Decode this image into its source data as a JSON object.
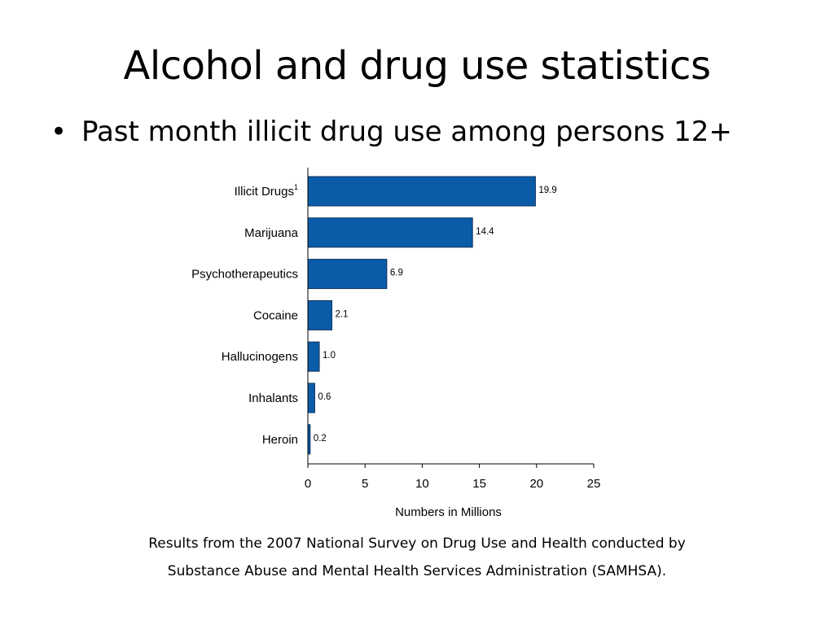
{
  "slide": {
    "title": "Alcohol and drug use statistics",
    "bullet_glyph": "•",
    "bullet": "Past month illicit drug use among persons 12+",
    "caption_line1": "Results from the 2007 National Survey on Drug Use and Health conducted by",
    "caption_line2": "Substance Abuse and Mental Health Services Administration (SAMHSA)."
  },
  "chart_data": {
    "type": "bar",
    "orientation": "horizontal",
    "categories": [
      "Illicit Drugs",
      "Marijuana",
      "Psychotherapeutics",
      "Cocaine",
      "Hallucinogens",
      "Inhalants",
      "Heroin"
    ],
    "category_superscripts": [
      "1",
      "",
      "",
      "",
      "",
      "",
      ""
    ],
    "values": [
      19.9,
      14.4,
      6.9,
      2.1,
      1.0,
      0.6,
      0.2
    ],
    "value_labels": [
      "19.9",
      "14.4",
      "6.9",
      "2.1",
      "1.0",
      "0.6",
      "0.2"
    ],
    "xlabel": "Numbers in Millions",
    "ylabel": "",
    "xlim": [
      0,
      25
    ],
    "xticks": [
      0,
      5,
      10,
      15,
      20,
      25
    ],
    "grid": false,
    "bar_color": "#0a5ca8",
    "bar_edge_color": "#0d2f5c"
  }
}
